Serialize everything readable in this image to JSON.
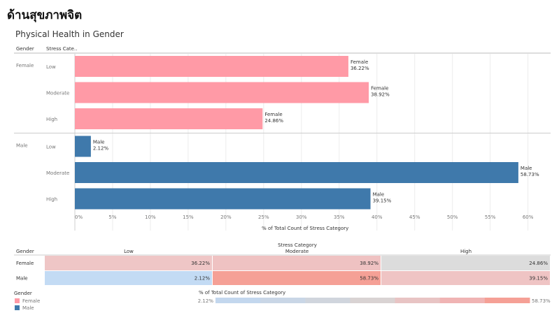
{
  "page": {
    "title": "ด้านสุขภาพจิต"
  },
  "chart_data": [
    {
      "type": "bar",
      "orientation": "horizontal",
      "title": "Physical Health in Gender",
      "row_headers": [
        "Gender",
        "Stress Cate.."
      ],
      "groups": [
        {
          "name": "Female",
          "color": "#ff9aa6",
          "bars": [
            {
              "category": "Low",
              "value": 36.22,
              "label": "36.22%"
            },
            {
              "category": "Moderate",
              "value": 38.92,
              "label": "38.92%"
            },
            {
              "category": "High",
              "value": 24.86,
              "label": "24.86%"
            }
          ]
        },
        {
          "name": "Male",
          "color": "#3f79ab",
          "bars": [
            {
              "category": "Low",
              "value": 2.12,
              "label": "2.12%"
            },
            {
              "category": "Moderate",
              "value": 58.73,
              "label": "58.73%"
            },
            {
              "category": "High",
              "value": 39.15,
              "label": "39.15%"
            }
          ]
        }
      ],
      "xlabel": "% of Total Count of Stress Category",
      "xlim": [
        0,
        63
      ],
      "xticks": [
        0,
        5,
        10,
        15,
        20,
        25,
        30,
        35,
        40,
        45,
        50,
        55,
        60
      ],
      "xtick_labels": [
        "0%",
        "5%",
        "10%",
        "15%",
        "20%",
        "25%",
        "30%",
        "35%",
        "40%",
        "45%",
        "50%",
        "55%",
        "60%"
      ],
      "grid": true
    },
    {
      "type": "heatmap",
      "column_header": "Stress Category",
      "row_header": "Gender",
      "columns": [
        "Low",
        "Moderate",
        "High"
      ],
      "rows": [
        {
          "name": "Female",
          "values": [
            36.22,
            38.92,
            24.86
          ],
          "labels": [
            "36.22%",
            "38.92%",
            "24.86%"
          ]
        },
        {
          "name": "Male",
          "values": [
            2.12,
            58.73,
            39.15
          ],
          "labels": [
            "2.12%",
            "58.73%",
            "39.15%"
          ]
        }
      ],
      "cell_colors": [
        [
          "#efc6c6",
          "#efc2c2",
          "#dcdcdc"
        ],
        [
          "#c3dbf4",
          "#f5a096",
          "#efc4c4"
        ]
      ],
      "legend": {
        "title": "Gender",
        "items": [
          {
            "label": "Female",
            "color": "#ff9aa6"
          },
          {
            "label": "Male",
            "color": "#3f79ab"
          }
        ]
      },
      "color_scale": {
        "title": "% of Total Count of Stress Category",
        "min": 2.12,
        "max": 58.73,
        "min_label": "2.12%",
        "max_label": "58.73%",
        "colors": [
          "#c3d7ee",
          "#c9d6e6",
          "#d0d5dd",
          "#d9d3d3",
          "#e8c4c4",
          "#f0b4b4",
          "#f5a096"
        ]
      }
    }
  ]
}
